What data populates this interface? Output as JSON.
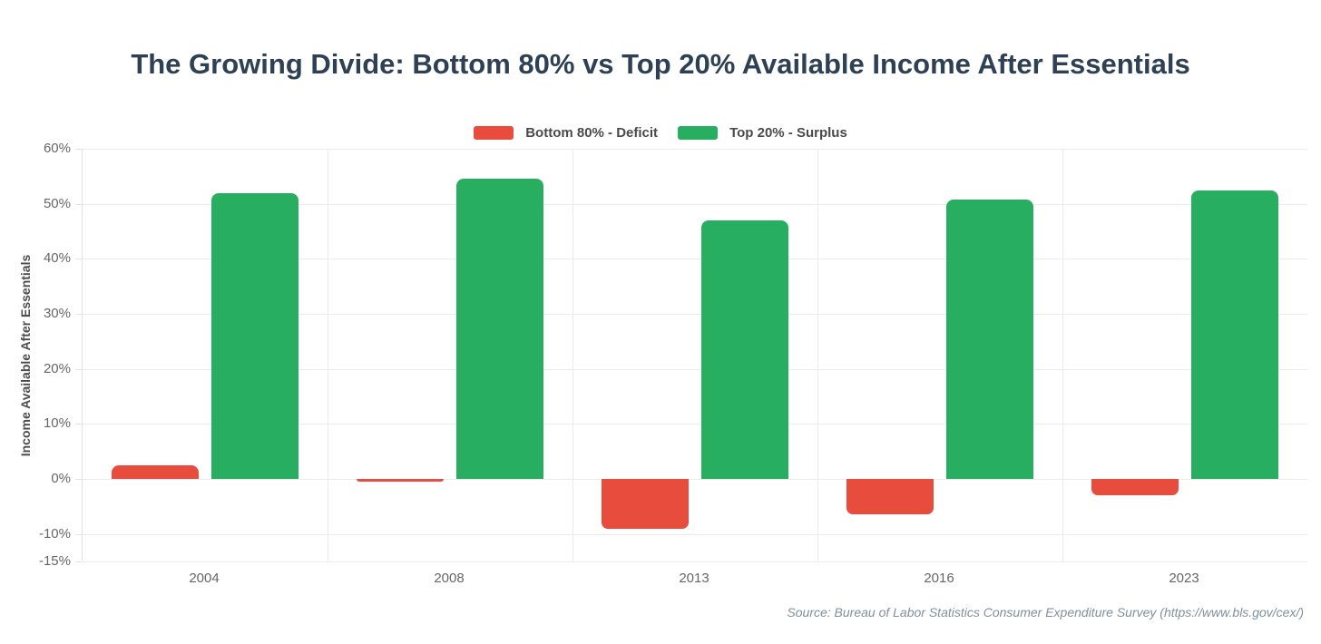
{
  "chart_data": {
    "type": "bar",
    "title": "The Growing Divide: Bottom 80% vs Top 20% Available Income After Essentials",
    "categories": [
      "2004",
      "2008",
      "2013",
      "2016",
      "2023"
    ],
    "series": [
      {
        "name": "Bottom 80% - Deficit",
        "key": "deficit",
        "color": "#e74c3c",
        "values": [
          2.5,
          -0.5,
          -9,
          -6.5,
          -3
        ]
      },
      {
        "name": "Top 20% - Surplus",
        "key": "surplus",
        "color": "#27ae60",
        "values": [
          52,
          54.5,
          47,
          50.8,
          52.5
        ]
      }
    ],
    "xlabel": "",
    "ylabel": "Income Available After Essentials",
    "ylim": [
      -15,
      60
    ],
    "yticks": [
      60,
      50,
      40,
      30,
      20,
      10,
      0,
      -10,
      -15
    ],
    "ytick_labels": [
      "60%",
      "50%",
      "40%",
      "30%",
      "20%",
      "10%",
      "0%",
      "-10%",
      "-15%"
    ],
    "grid": true,
    "legend_position": "top-center"
  },
  "source_note": "Source: Bureau of Labor Statistics Consumer Expenditure Survey (https://www.bls.gov/cex/)"
}
